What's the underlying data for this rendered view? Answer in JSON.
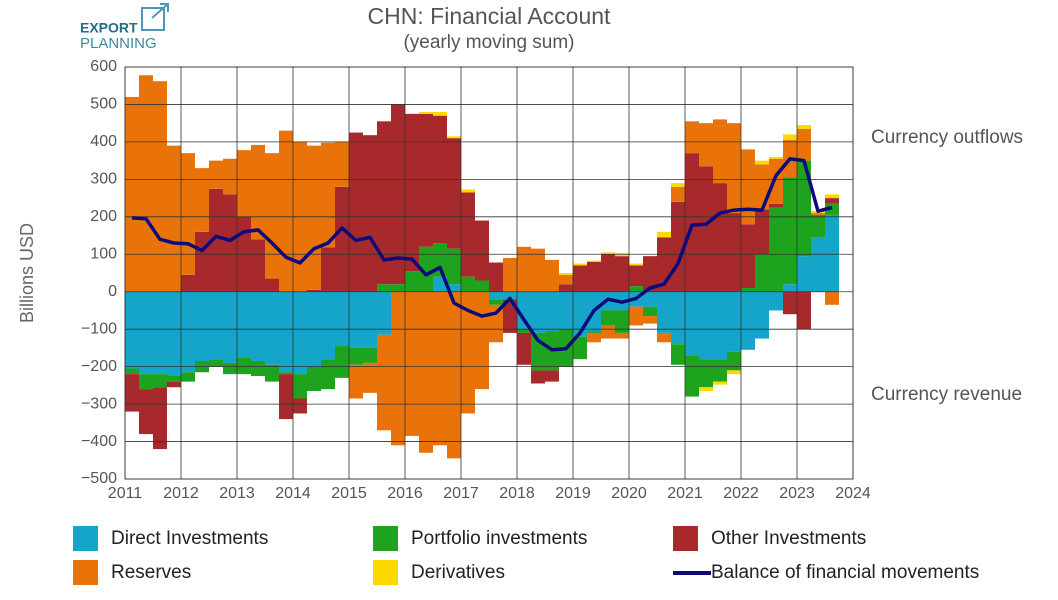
{
  "logo": {
    "line1": "EXPORT",
    "line2": "PLANNING"
  },
  "chart_data": {
    "type": "bar",
    "stacked": true,
    "title": "CHN: Financial Account",
    "subtitle": "(yearly moving sum)",
    "y_label": "Billions USD",
    "annotations": [
      "Currency outflows",
      "Currency revenue"
    ],
    "grid": true,
    "xlim": [
      2011,
      2024
    ],
    "xticks": [
      2011,
      2012,
      2013,
      2014,
      2015,
      2016,
      2017,
      2018,
      2019,
      2020,
      2021,
      2022,
      2023,
      2024
    ],
    "ylim": [
      -500,
      600
    ],
    "yticks": [
      {
        "value": -500,
        "label": "−500"
      },
      {
        "value": -400,
        "label": "−400"
      },
      {
        "value": -300,
        "label": "−300"
      },
      {
        "value": -200,
        "label": "−200"
      },
      {
        "value": -100,
        "label": "−100"
      },
      0,
      100,
      200,
      300,
      400,
      500,
      600
    ],
    "bar_width": 0.25,
    "x": [
      2011.125,
      2011.375,
      2011.625,
      2011.875,
      2012.125,
      2012.375,
      2012.625,
      2012.875,
      2013.125,
      2013.375,
      2013.625,
      2013.875,
      2014.125,
      2014.375,
      2014.625,
      2014.875,
      2015.125,
      2015.375,
      2015.625,
      2015.875,
      2016.125,
      2016.375,
      2016.625,
      2016.875,
      2017.125,
      2017.375,
      2017.625,
      2017.875,
      2018.125,
      2018.375,
      2018.625,
      2018.875,
      2019.125,
      2019.375,
      2019.625,
      2019.875,
      2020.125,
      2020.375,
      2020.625,
      2020.875,
      2021.125,
      2021.375,
      2021.625,
      2021.875,
      2022.125,
      2022.375,
      2022.625,
      2022.875,
      2023.125,
      2023.375,
      2023.625
    ],
    "series": [
      {
        "name": "Direct Investments",
        "color": "#14a5c8",
        "type": "bar",
        "values": [
          -205,
          -220,
          -220,
          -225,
          -215,
          -185,
          -180,
          -190,
          -175,
          -185,
          -195,
          -215,
          -220,
          -200,
          -180,
          -145,
          -150,
          -150,
          -115,
          0,
          0,
          0,
          40,
          20,
          0,
          0,
          -20,
          -20,
          -100,
          -110,
          -105,
          -100,
          -120,
          -105,
          -50,
          -50,
          -40,
          -40,
          -110,
          -140,
          -170,
          -180,
          -180,
          -160,
          -155,
          -125,
          -50,
          20,
          95,
          145,
          205
        ]
      },
      {
        "name": "Portfolio investments",
        "color": "#1ea31e",
        "type": "bar",
        "values": [
          -15,
          -40,
          -35,
          -15,
          -25,
          -30,
          -20,
          -30,
          -45,
          -40,
          -45,
          -5,
          -65,
          -65,
          -80,
          -85,
          -45,
          -40,
          20,
          20,
          55,
          120,
          90,
          95,
          40,
          30,
          -15,
          0,
          -10,
          -100,
          -105,
          -100,
          -60,
          -5,
          -40,
          -60,
          15,
          -25,
          0,
          -55,
          -110,
          -75,
          -60,
          -50,
          10,
          100,
          225,
          285,
          255,
          60,
          30
        ]
      },
      {
        "name": "Other Investments",
        "color": "#a8292b",
        "type": "bar",
        "values": [
          -100,
          -120,
          -165,
          -15,
          45,
          160,
          275,
          260,
          200,
          140,
          35,
          -120,
          -40,
          5,
          118,
          280,
          425,
          418,
          435,
          480,
          420,
          355,
          340,
          295,
          225,
          160,
          78,
          -90,
          -85,
          -35,
          -30,
          20,
          70,
          80,
          100,
          95,
          55,
          95,
          145,
          240,
          370,
          335,
          290,
          210,
          170,
          120,
          10,
          -60,
          -100,
          0,
          15
        ]
      },
      {
        "name": "Reserves",
        "color": "#ea7309",
        "type": "bar",
        "values": [
          520,
          578,
          562,
          390,
          325,
          170,
          75,
          95,
          178,
          252,
          335,
          430,
          400,
          385,
          280,
          120,
          -90,
          -80,
          -255,
          -410,
          -385,
          -430,
          -410,
          -445,
          -325,
          -260,
          -100,
          90,
          120,
          115,
          85,
          25,
          0,
          -25,
          -35,
          -15,
          -50,
          -20,
          -25,
          40,
          85,
          115,
          170,
          240,
          200,
          120,
          120,
          100,
          85,
          5,
          -35
        ]
      },
      {
        "name": "Derivatives",
        "color": "#ffd800",
        "type": "bar",
        "values": [
          0,
          0,
          0,
          0,
          0,
          0,
          0,
          0,
          0,
          0,
          0,
          0,
          0,
          0,
          0,
          0,
          0,
          0,
          0,
          0,
          0,
          5,
          10,
          5,
          8,
          0,
          0,
          0,
          0,
          0,
          0,
          5,
          5,
          3,
          5,
          8,
          5,
          0,
          15,
          10,
          0,
          -10,
          -8,
          -10,
          0,
          10,
          5,
          15,
          10,
          5,
          10
        ]
      },
      {
        "name": "Balance of financial movements",
        "color": "#0b0b7c",
        "type": "line",
        "values": [
          197,
          195,
          140,
          130,
          128,
          110,
          148,
          137,
          160,
          165,
          130,
          92,
          77,
          115,
          130,
          170,
          137,
          145,
          85,
          90,
          87,
          45,
          65,
          -30,
          -50,
          -65,
          -57,
          -18,
          -75,
          -130,
          -155,
          -152,
          -110,
          -50,
          -20,
          -28,
          -18,
          10,
          20,
          75,
          178,
          180,
          210,
          218,
          220,
          218,
          310,
          355,
          350,
          215,
          225
        ]
      }
    ]
  }
}
